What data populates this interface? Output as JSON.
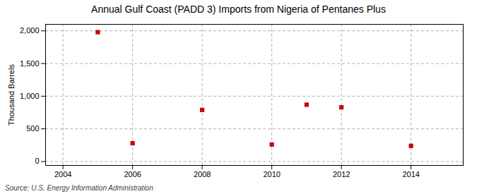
{
  "chart_data": {
    "type": "scatter",
    "title": "Annual Gulf Coast (PADD 3) Imports from Nigeria of Pentanes Plus",
    "ylabel": "Thousand Barrels",
    "source": "Source: U.S. Energy Information Administration",
    "x": [
      2005,
      2006,
      2008,
      2010,
      2011,
      2012,
      2014
    ],
    "values": [
      1980,
      280,
      790,
      260,
      870,
      830,
      240
    ],
    "xlim": [
      2003.5,
      2015.5
    ],
    "ylim": [
      -60,
      2100
    ],
    "xticks": [
      2004,
      2006,
      2008,
      2010,
      2012,
      2014
    ],
    "yticks": [
      0,
      500,
      {
        "value": 1000,
        "label": "1,000"
      },
      {
        "value": 1500,
        "label": "1,500"
      },
      {
        "value": 2000,
        "label": "2,000"
      }
    ],
    "color": "#cc0000",
    "marker": "square",
    "grid": true
  }
}
